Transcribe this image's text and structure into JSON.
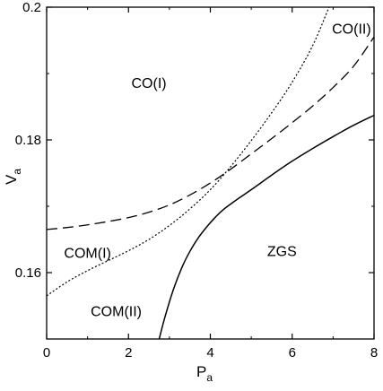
{
  "chart_data": {
    "type": "line",
    "title": "",
    "xlabel": {
      "main": "P",
      "sub": "a"
    },
    "ylabel": {
      "main": "V",
      "sub": "a"
    },
    "xlim": [
      0,
      8
    ],
    "ylim": [
      0.15,
      0.2
    ],
    "xticks": [
      0,
      2,
      4,
      6,
      8
    ],
    "xtick_labels": [
      "0",
      "2",
      "4",
      "6",
      "8"
    ],
    "yticks": [
      0.16,
      0.18,
      0.2
    ],
    "ytick_labels": [
      "0.16",
      "0.18",
      "0.2"
    ],
    "grid": false,
    "legend": "none",
    "series": [
      {
        "style": "solid",
        "x": [
          2.75,
          2.9,
          3.1,
          3.3,
          3.5,
          3.7,
          3.9,
          4.1,
          4.3,
          4.6,
          5.0,
          5.5,
          6.0,
          6.5,
          7.0,
          7.5,
          8.0
        ],
        "y": [
          0.15,
          0.1535,
          0.1575,
          0.1607,
          0.1632,
          0.1652,
          0.1668,
          0.1682,
          0.1694,
          0.1708,
          0.1725,
          0.1747,
          0.1768,
          0.1787,
          0.1805,
          0.1822,
          0.1837
        ]
      },
      {
        "style": "dashed",
        "x": [
          0,
          0.5,
          1.0,
          1.5,
          2.0,
          2.5,
          3.0,
          3.5,
          4.0,
          4.5,
          5.0,
          5.5,
          6.0,
          6.5,
          7.0,
          7.5,
          8.0
        ],
        "y": [
          0.1665,
          0.1668,
          0.1672,
          0.1677,
          0.1683,
          0.1691,
          0.1702,
          0.1717,
          0.1735,
          0.1756,
          0.1779,
          0.1802,
          0.1826,
          0.1851,
          0.1879,
          0.1911,
          0.1955
        ]
      },
      {
        "style": "dotted",
        "x": [
          0,
          0.5,
          1.0,
          1.5,
          2.0,
          2.5,
          3.0,
          3.5,
          4.0,
          4.5,
          5.0,
          5.5,
          6.0,
          6.5,
          6.9
        ],
        "y": [
          0.1565,
          0.1586,
          0.1603,
          0.1618,
          0.1633,
          0.165,
          0.1671,
          0.1696,
          0.1725,
          0.176,
          0.1799,
          0.1841,
          0.1887,
          0.1942,
          0.2
        ]
      }
    ],
    "annotations": [
      {
        "text": "CO(I)",
        "x": 2.5,
        "y": 0.1885
      },
      {
        "text": "CO(II)",
        "x": 7.45,
        "y": 0.1967
      },
      {
        "text": "COM(I)",
        "x": 1.0,
        "y": 0.1629
      },
      {
        "text": "COM(II)",
        "x": 1.7,
        "y": 0.1541
      },
      {
        "text": "ZGS",
        "x": 5.75,
        "y": 0.1632
      }
    ]
  }
}
